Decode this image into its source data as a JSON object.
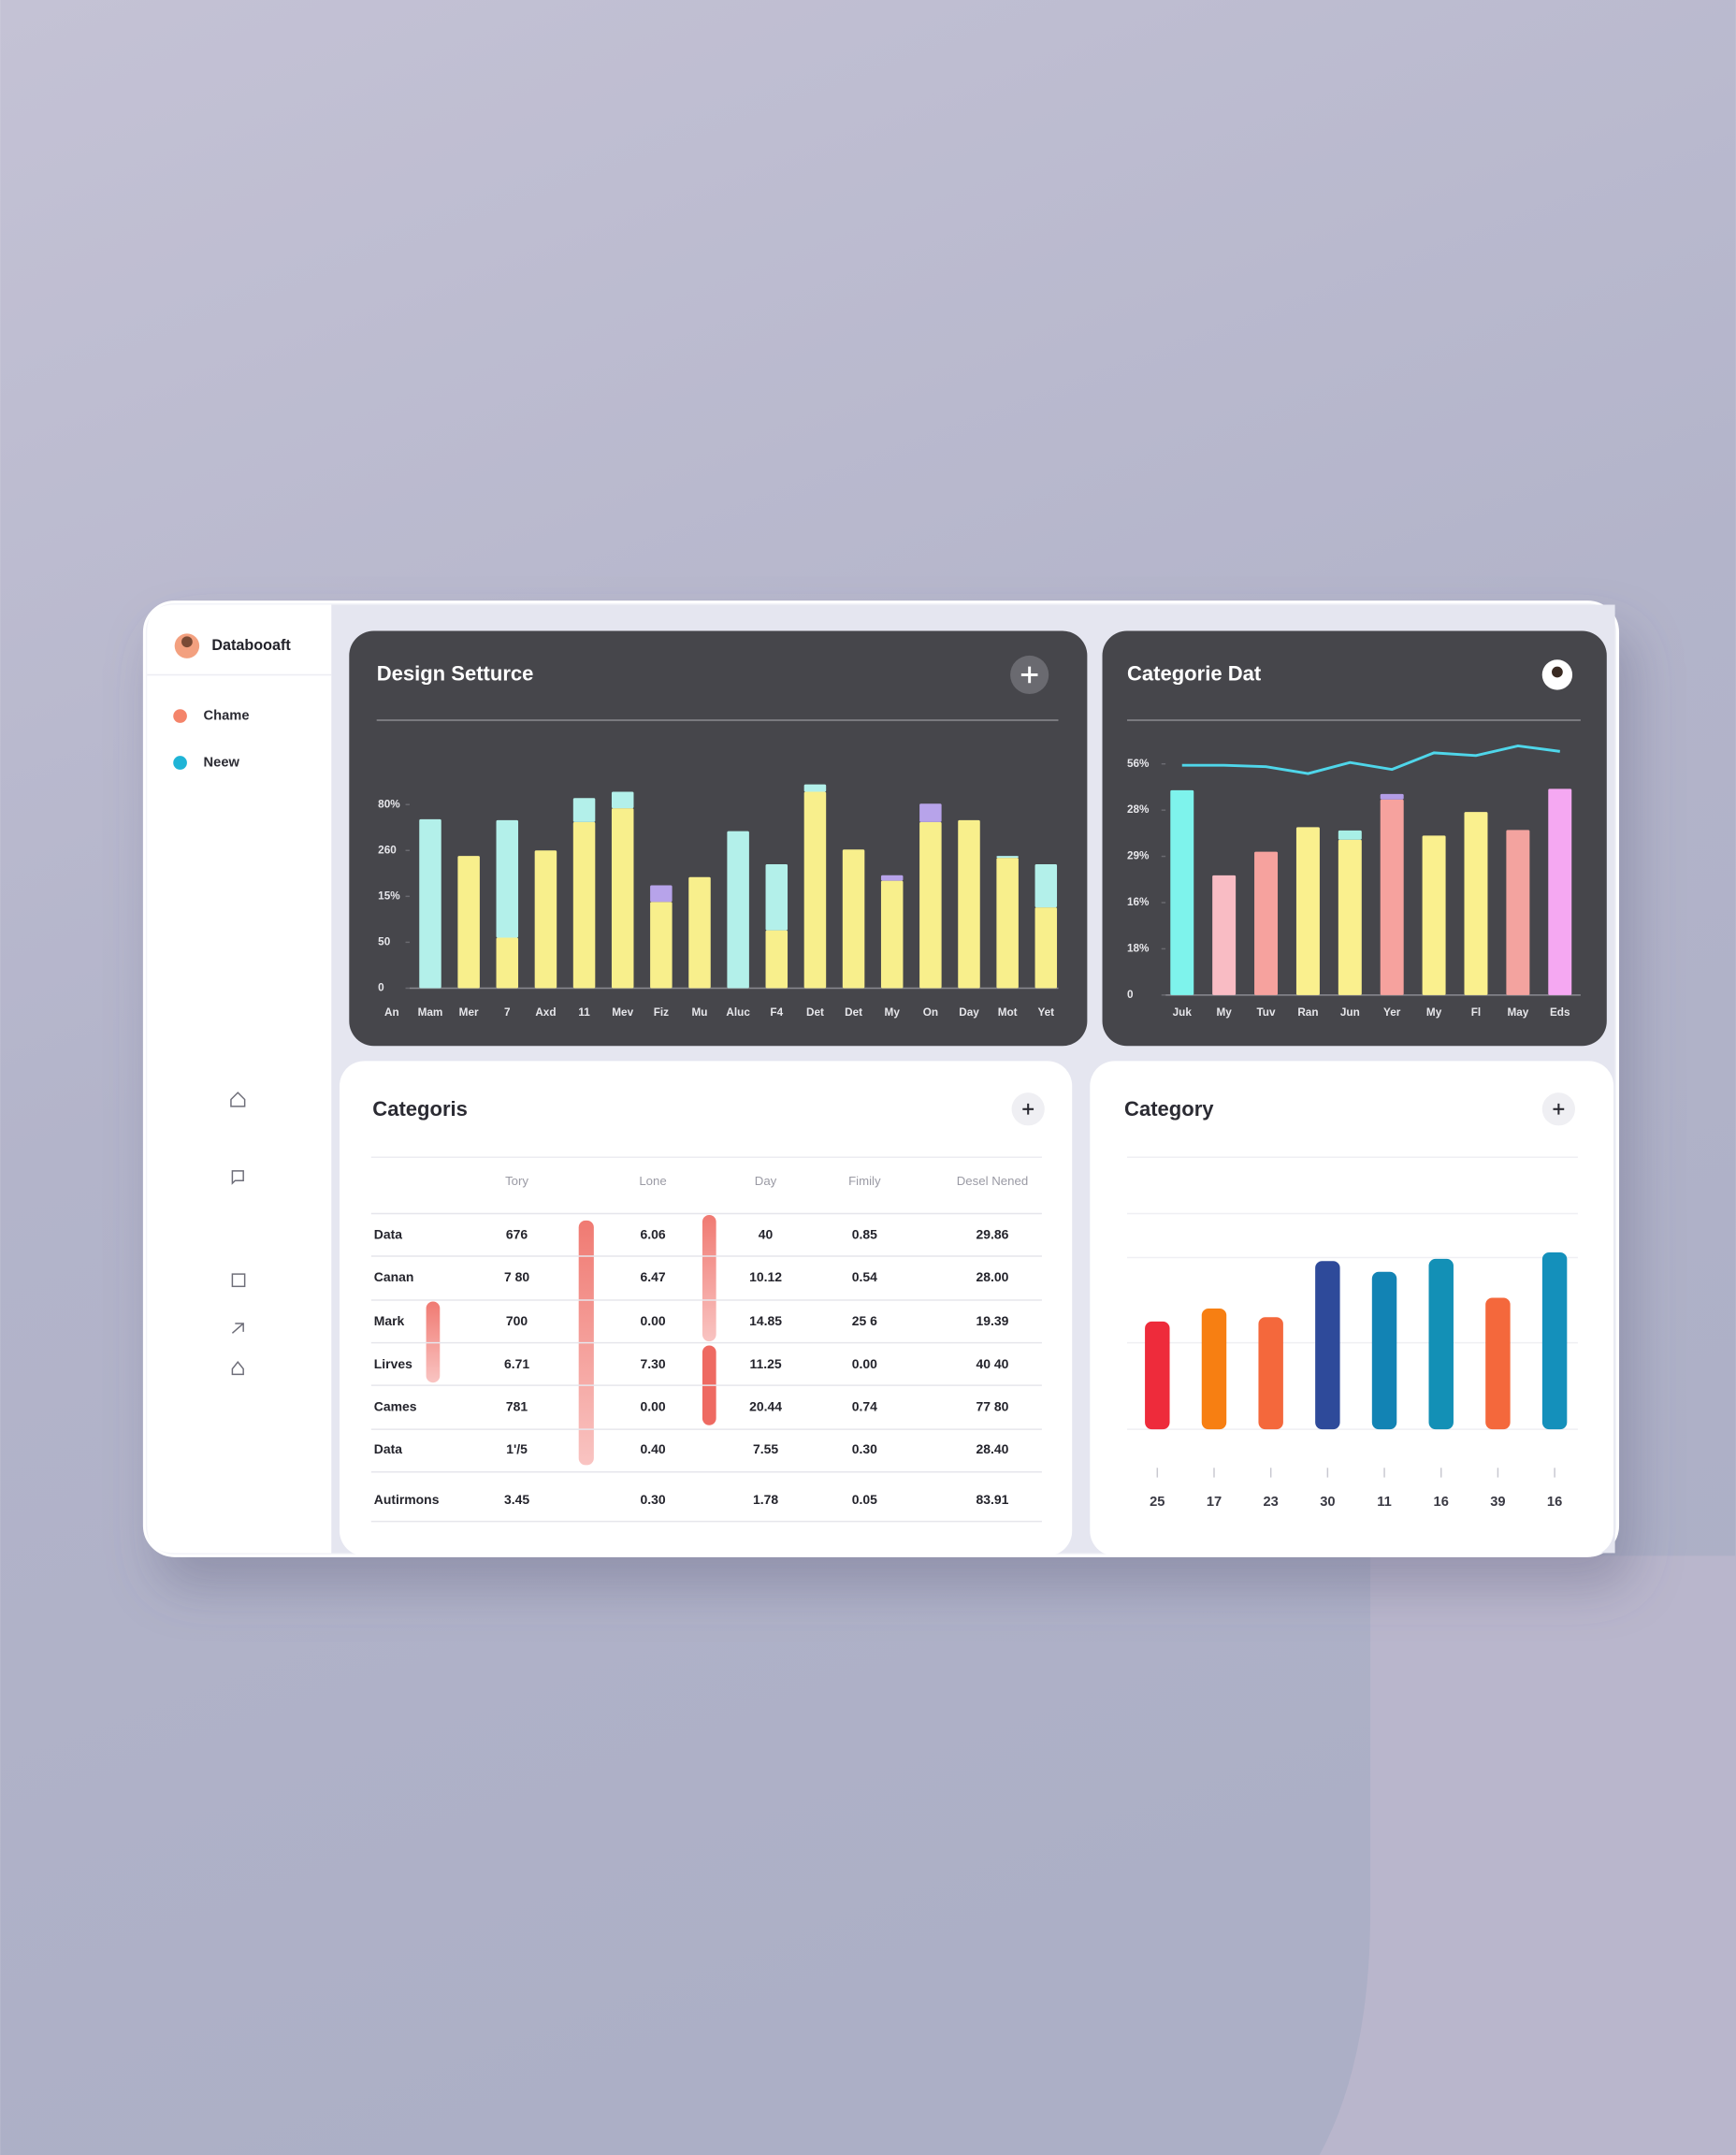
{
  "sidebar": {
    "brand": "Databooaft",
    "items": [
      {
        "label": "Chame",
        "color": "#f4846a"
      },
      {
        "label": "Neew",
        "color": "#1fb4d6"
      }
    ]
  },
  "chart_data": [
    {
      "type": "bar",
      "title": "Design Setturce",
      "stacked": true,
      "categories": [
        "An",
        "Mam",
        "Mer",
        "7",
        "Axd",
        "11",
        "Mev",
        "Fiz",
        "Mu",
        "Aluc",
        "F4",
        "Det",
        "Det",
        "My",
        "On",
        "Day",
        "Mot",
        "Yet"
      ],
      "series": [
        {
          "color": "#f8ef8c",
          "values": [
            null,
            null,
            144,
            55,
            150,
            181,
            196,
            94,
            121,
            null,
            63,
            214,
            151,
            117,
            181,
            183,
            142,
            88
          ]
        },
        {
          "color": "#b3f0ea",
          "values": [
            null,
            184,
            null,
            128,
            null,
            26,
            18,
            null,
            null,
            171,
            72,
            8,
            null,
            null,
            null,
            null,
            2,
            47
          ]
        },
        {
          "color": "#b7a3ea",
          "values": [
            null,
            null,
            null,
            null,
            null,
            null,
            null,
            18,
            null,
            null,
            null,
            null,
            null,
            6,
            20,
            null,
            null,
            null
          ]
        }
      ],
      "ylim": [
        0,
        250
      ],
      "yticks": [
        0,
        50,
        {
          "value": 100,
          "label": "15%"
        },
        {
          "value": 150,
          "label": "260"
        },
        {
          "value": 200,
          "label": "80%"
        }
      ]
    },
    {
      "type": "bar",
      "title": "Categorie Dat",
      "stacked": true,
      "categories": [
        "Juk",
        "My",
        "Tuv",
        "Ran",
        "Jun",
        "Yer",
        "My",
        "Fl",
        "May",
        "Eds"
      ],
      "series": [
        {
          "colors": [
            "#7ef3ec",
            "#f9bcc4",
            "#f6a29e",
            "#faf08e",
            "#faf08e",
            "#f6a29e",
            "#faf08e",
            "#faf08e",
            "#f3a39f",
            "#f5a8f2"
          ],
          "values": [
            44.3,
            25.9,
            31,
            36.3,
            33.6,
            42.3,
            34.5,
            39.6,
            35.7,
            44.6
          ]
        },
        {
          "color": "#a8efe6",
          "values": [
            null,
            null,
            null,
            null,
            2,
            null,
            null,
            null,
            null,
            null
          ]
        },
        {
          "color": "#b39de6",
          "values": [
            null,
            null,
            null,
            null,
            null,
            1.2,
            null,
            null,
            null,
            null
          ]
        },
        {
          "type": "line",
          "color": "#4fd6ea",
          "values": [
            49.7,
            49.7,
            49.4,
            47.9,
            50.3,
            48.8,
            52.4,
            51.8,
            53.9,
            52.7
          ]
        }
      ],
      "ylim": [
        0,
        55
      ],
      "yticks": [
        0,
        {
          "value": 10,
          "label": "18%"
        },
        {
          "value": 20,
          "label": "16%"
        },
        {
          "value": 30,
          "label": "29%"
        },
        {
          "value": 40,
          "label": "28%"
        },
        {
          "value": 50,
          "label": "56%"
        }
      ]
    },
    {
      "type": "bar",
      "title": "Category",
      "categories": [
        "25",
        "17",
        "23",
        "30",
        "11",
        "16",
        "39",
        "16"
      ],
      "values": [
        50,
        56,
        52,
        78,
        73,
        79,
        61,
        82
      ],
      "colors": [
        "#ee2b3b",
        "#f77f12",
        "#f4683c",
        "#2e4a9a",
        "#1283b4",
        "#1390b6",
        "#f4683c",
        "#1490bb"
      ],
      "ylim": [
        0,
        100
      ]
    }
  ],
  "table": {
    "title": "Categoris",
    "header": [
      "Tory",
      "Lone",
      "Day",
      "Fimily",
      "Desel Nened"
    ],
    "rows": [
      [
        "Data",
        "676",
        "6.06",
        "40",
        "0.85",
        "29.86"
      ],
      [
        "Canan",
        "7 80",
        "6.47",
        "10.12",
        "0.54",
        "28.00"
      ],
      [
        "Mark",
        "700",
        "0.00",
        "14.85",
        "25 6",
        "19.39"
      ],
      [
        "Lirves",
        "6.71",
        "7.30",
        "11.25",
        "0.00",
        "40 40"
      ],
      [
        "Cames",
        "781",
        "0.00",
        "20.44",
        "0.74",
        "77 80"
      ],
      [
        "Data",
        "1'/5",
        "0.40",
        "7.55",
        "0.30",
        "28.40"
      ],
      [
        "Autirmons",
        "3.45",
        "0.30",
        "1.78",
        "0.05",
        "83.91"
      ]
    ]
  }
}
